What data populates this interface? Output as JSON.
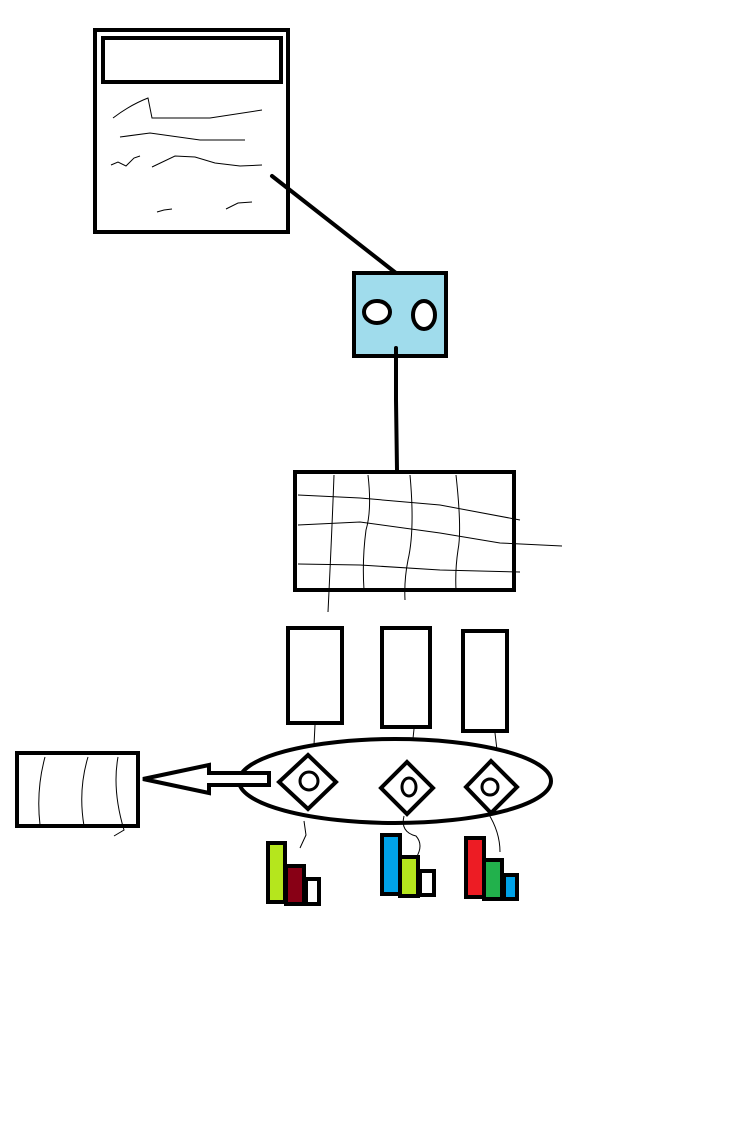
{
  "colors": {
    "background": "#ffffff",
    "stroke": "#000000",
    "hub_fill": "#a0dcec",
    "bar_lime": "#b5e61d",
    "bar_darkred": "#880015",
    "bar_blue": "#00a2e8",
    "bar_red": "#ed1c24",
    "bar_green": "#22b14c"
  },
  "nodes": [
    {
      "id": "document",
      "icon": "document-icon"
    },
    {
      "id": "hub",
      "icon": "hub-icon"
    },
    {
      "id": "grid",
      "icon": "grid-icon"
    },
    {
      "id": "column-1",
      "icon": "rectangle-icon"
    },
    {
      "id": "column-2",
      "icon": "rectangle-icon"
    },
    {
      "id": "column-3",
      "icon": "rectangle-icon"
    },
    {
      "id": "ellipse-group",
      "icon": "ellipse-icon"
    },
    {
      "id": "output",
      "icon": "rectangle-icon"
    }
  ],
  "bar_icons": [
    {
      "id": "bars-1",
      "colors": [
        "#b5e61d",
        "#880015",
        "#ffffff"
      ]
    },
    {
      "id": "bars-2",
      "colors": [
        "#00a2e8",
        "#b5e61d",
        "#ffffff"
      ]
    },
    {
      "id": "bars-3",
      "colors": [
        "#ed1c24",
        "#22b14c",
        "#00a2e8"
      ]
    }
  ]
}
